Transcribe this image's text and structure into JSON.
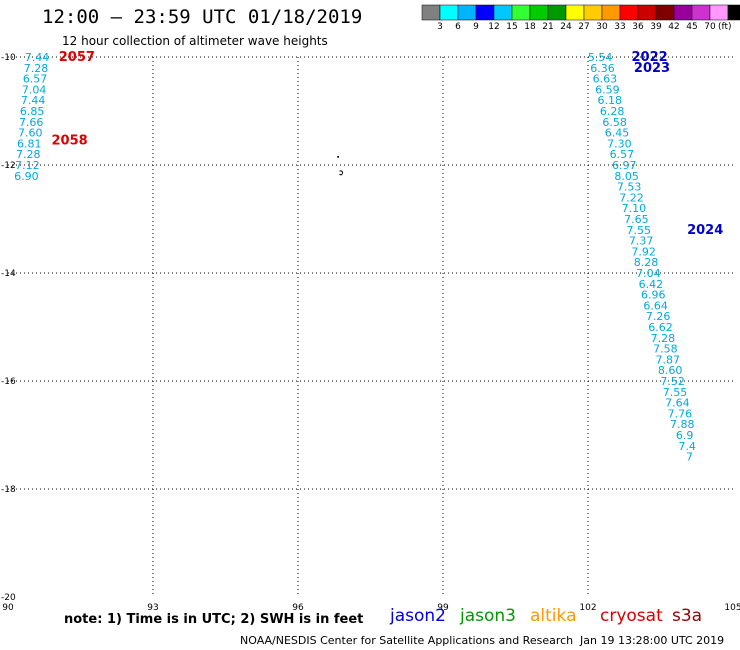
{
  "header": {
    "title": "12:00 — 23:59 UTC 01/18/2019",
    "subtitle": "12 hour collection of altimeter wave heights"
  },
  "colorbar": {
    "colors": [
      "#808080",
      "#00ffff",
      "#00b4ff",
      "#0000ff",
      "#00c8ff",
      "#33ff33",
      "#00cc00",
      "#009900",
      "#ffff00",
      "#ffcc00",
      "#ff9900",
      "#ff0000",
      "#cc0000",
      "#800000",
      "#990099",
      "#cc33cc",
      "#ff99ff",
      "#000000"
    ],
    "labels": [
      "3",
      "6",
      "9",
      "12",
      "15",
      "18",
      "21",
      "24",
      "27",
      "30",
      "33",
      "36",
      "39",
      "42",
      "45",
      "70"
    ],
    "unit": "(ft)"
  },
  "map": {
    "lon_ticks": [
      "90",
      "93",
      "96",
      "99",
      "102",
      "105"
    ],
    "lat_ticks": [
      "-10",
      "-12",
      "-14",
      "-16",
      "-18",
      "-20"
    ],
    "lon_range": [
      90,
      105
    ],
    "lat_range": [
      -10,
      -20
    ]
  },
  "passes": [
    {
      "label": "2057",
      "color": "#dd0000",
      "lon": 91.05,
      "lat": -10.0
    },
    {
      "label": "2058",
      "color": "#dd0000",
      "lon": 90.9,
      "lat": -11.55
    },
    {
      "label": "2022",
      "color": "#0000cc",
      "lon": 102.9,
      "lat": -10.0
    },
    {
      "label": "2023",
      "color": "#0000cc",
      "lon": 102.95,
      "lat": -10.2
    },
    {
      "label": "2024",
      "color": "#0000cc",
      "lon": 104.05,
      "lat": -13.2
    }
  ],
  "track_west": {
    "color": "#00aadd",
    "points": [
      {
        "lon": 90.6,
        "lat": -10.0,
        "value": "7.44"
      },
      {
        "lon": 90.58,
        "lat": -10.2,
        "value": "7.28"
      },
      {
        "lon": 90.56,
        "lat": -10.4,
        "value": "6.57"
      },
      {
        "lon": 90.54,
        "lat": -10.6,
        "value": "7.04"
      },
      {
        "lon": 90.52,
        "lat": -10.8,
        "value": "7.44"
      },
      {
        "lon": 90.5,
        "lat": -11.0,
        "value": "6.85"
      },
      {
        "lon": 90.48,
        "lat": -11.2,
        "value": "7.66"
      },
      {
        "lon": 90.46,
        "lat": -11.4,
        "value": "7.60"
      },
      {
        "lon": 90.44,
        "lat": -11.6,
        "value": "6.81"
      },
      {
        "lon": 90.42,
        "lat": -11.8,
        "value": "7.28"
      },
      {
        "lon": 90.4,
        "lat": -12.0,
        "value": "7.12"
      },
      {
        "lon": 90.38,
        "lat": -12.2,
        "value": "6.90"
      }
    ]
  },
  "track_east": {
    "color": "#00aadd",
    "points": [
      {
        "lon": 102.25,
        "lat": -10.0,
        "value": "5.54"
      },
      {
        "lon": 102.3,
        "lat": -10.2,
        "value": "6.36"
      },
      {
        "lon": 102.35,
        "lat": -10.4,
        "value": "6.63"
      },
      {
        "lon": 102.4,
        "lat": -10.6,
        "value": "6.59"
      },
      {
        "lon": 102.45,
        "lat": -10.8,
        "value": "6.18"
      },
      {
        "lon": 102.5,
        "lat": -11.0,
        "value": "6.28"
      },
      {
        "lon": 102.55,
        "lat": -11.2,
        "value": "6.58"
      },
      {
        "lon": 102.6,
        "lat": -11.4,
        "value": "6.45"
      },
      {
        "lon": 102.65,
        "lat": -11.6,
        "value": "7.30"
      },
      {
        "lon": 102.7,
        "lat": -11.8,
        "value": "6.57"
      },
      {
        "lon": 102.75,
        "lat": -12.0,
        "value": "6.97"
      },
      {
        "lon": 102.8,
        "lat": -12.2,
        "value": "8.05"
      },
      {
        "lon": 102.85,
        "lat": -12.4,
        "value": "7.53"
      },
      {
        "lon": 102.9,
        "lat": -12.6,
        "value": "7.22"
      },
      {
        "lon": 102.95,
        "lat": -12.8,
        "value": "7.10"
      },
      {
        "lon": 103.0,
        "lat": -13.0,
        "value": "7.65"
      },
      {
        "lon": 103.05,
        "lat": -13.2,
        "value": "7.55"
      },
      {
        "lon": 103.1,
        "lat": -13.4,
        "value": "7.37"
      },
      {
        "lon": 103.15,
        "lat": -13.6,
        "value": "7.92"
      },
      {
        "lon": 103.2,
        "lat": -13.8,
        "value": "8.28"
      },
      {
        "lon": 103.25,
        "lat": -14.0,
        "value": "7.04"
      },
      {
        "lon": 103.3,
        "lat": -14.2,
        "value": "6.42"
      },
      {
        "lon": 103.35,
        "lat": -14.4,
        "value": "6.96"
      },
      {
        "lon": 103.4,
        "lat": -14.6,
        "value": "6.64"
      },
      {
        "lon": 103.45,
        "lat": -14.8,
        "value": "7.26"
      },
      {
        "lon": 103.5,
        "lat": -15.0,
        "value": "6.62"
      },
      {
        "lon": 103.55,
        "lat": -15.2,
        "value": "7.28"
      },
      {
        "lon": 103.6,
        "lat": -15.4,
        "value": "7.58"
      },
      {
        "lon": 103.65,
        "lat": -15.6,
        "value": "7.87"
      },
      {
        "lon": 103.7,
        "lat": -15.8,
        "value": "8.60"
      },
      {
        "lon": 103.75,
        "lat": -16.0,
        "value": "7.52"
      },
      {
        "lon": 103.8,
        "lat": -16.2,
        "value": "7.55"
      },
      {
        "lon": 103.85,
        "lat": -16.4,
        "value": "7.64"
      },
      {
        "lon": 103.9,
        "lat": -16.6,
        "value": "7.76"
      },
      {
        "lon": 103.95,
        "lat": -16.8,
        "value": "7.88"
      },
      {
        "lon": 104.0,
        "lat": -17.0,
        "value": "6.9"
      },
      {
        "lon": 104.05,
        "lat": -17.2,
        "value": "7.4"
      },
      {
        "lon": 104.1,
        "lat": -17.4,
        "value": "7"
      }
    ]
  },
  "footer": {
    "note": "note: 1) Time is in UTC; 2) SWH is in feet",
    "satellites": [
      {
        "name": "jason2",
        "color": "#0000dd"
      },
      {
        "name": "jason3",
        "color": "#009900"
      },
      {
        "name": "altika",
        "color": "#ff9900"
      },
      {
        "name": "cryosat",
        "color": "#dd0000"
      },
      {
        "name": "s3a",
        "color": "#990000"
      }
    ],
    "credit": "NOAA/NESDIS Center for Satellite Applications and Research",
    "timestamp": "Jan 19 13:28:00 UTC 2019"
  }
}
